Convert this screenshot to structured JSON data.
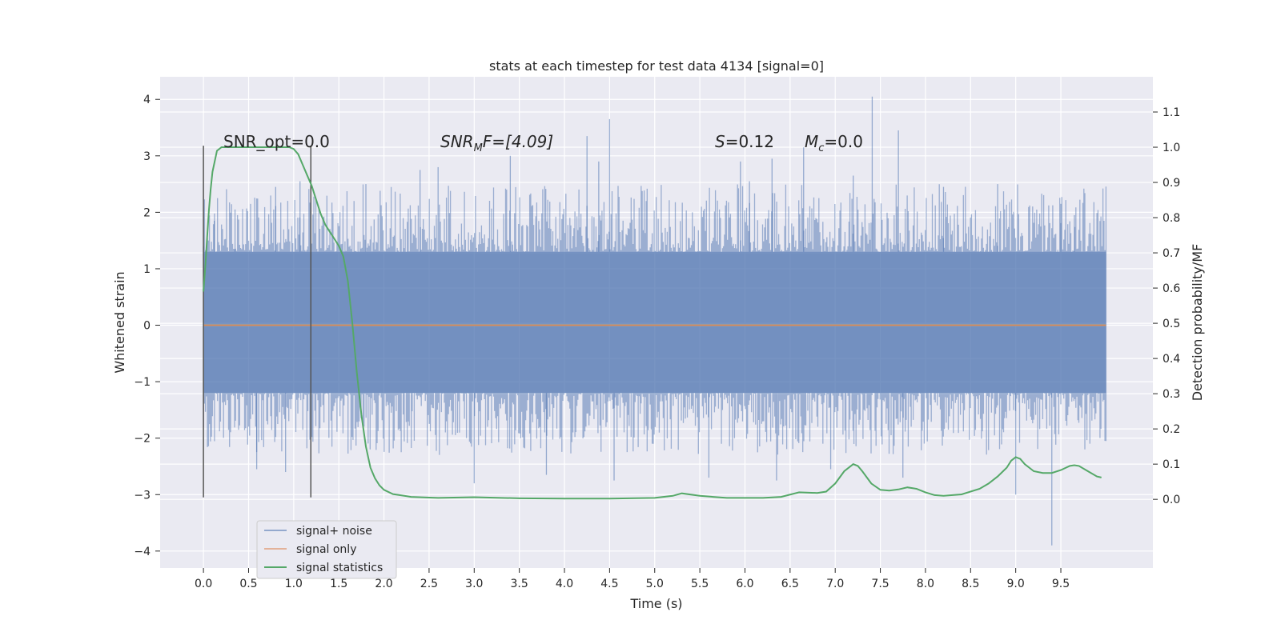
{
  "chart_data": {
    "type": "line",
    "title": "stats at each timestep for test data 4134 [signal=0]",
    "xlabel": "Time (s)",
    "ylabel_left": "Whitened strain",
    "ylabel_right": "Detection probability/MF",
    "xlim": [
      -0.48,
      10.52
    ],
    "ylim_left": [
      -4.3,
      4.4
    ],
    "ylim_right": [
      -0.195,
      1.2
    ],
    "x_ticks": [
      "0.0",
      "0.5",
      "1.0",
      "1.5",
      "2.0",
      "2.5",
      "3.0",
      "3.5",
      "4.0",
      "4.5",
      "5.0",
      "5.5",
      "6.0",
      "6.5",
      "7.0",
      "7.5",
      "8.0",
      "8.5",
      "9.0",
      "9.5"
    ],
    "y_ticks_left": [
      "4",
      "3",
      "2",
      "1",
      "0",
      "−1",
      "−2",
      "−3",
      "−4"
    ],
    "y_ticks_right": [
      "1.1",
      "1.0",
      "0.9",
      "0.8",
      "0.7",
      "0.6",
      "0.5",
      "0.4",
      "0.3",
      "0.2",
      "0.1",
      "0.0"
    ],
    "grid": true,
    "legend_position": "lower-left",
    "annotations": {
      "snr_opt": "SNR_opt=0.0",
      "snr_mf_label": "SNR",
      "snr_mf_sub": "M",
      "snr_mf_after": "F=[4.09]",
      "s_label": "S",
      "s_value": "=0.12",
      "mc_label": "M",
      "mc_sub": "c",
      "mc_value": "=0.0"
    },
    "vertical_lines_x": [
      0.0,
      1.19
    ],
    "vertical_lines_range": [
      -3.05,
      3.18
    ],
    "series": [
      {
        "name": "signal+ noise",
        "color": "#4c72b0",
        "axis": "left",
        "x_range": [
          0.0,
          10.0
        ],
        "envelope_typical": [
          -1.6,
          1.9
        ],
        "min": -3.9,
        "max": 4.05,
        "spikes": [
          {
            "x": 0.12,
            "y": 1.85
          },
          {
            "x": 0.35,
            "y": 2.05
          },
          {
            "x": 0.59,
            "y": -2.55
          },
          {
            "x": 0.8,
            "y": 2.45
          },
          {
            "x": 0.91,
            "y": -2.6
          },
          {
            "x": 1.07,
            "y": 2.55
          },
          {
            "x": 1.8,
            "y": 2.5
          },
          {
            "x": 2.4,
            "y": 2.75
          },
          {
            "x": 2.6,
            "y": 2.8
          },
          {
            "x": 3.0,
            "y": -2.8
          },
          {
            "x": 3.4,
            "y": 3.0
          },
          {
            "x": 3.8,
            "y": -2.65
          },
          {
            "x": 4.25,
            "y": 3.35
          },
          {
            "x": 4.38,
            "y": 2.9
          },
          {
            "x": 4.5,
            "y": 3.65
          },
          {
            "x": 4.55,
            "y": -2.75
          },
          {
            "x": 5.6,
            "y": -2.7
          },
          {
            "x": 5.95,
            "y": 2.9
          },
          {
            "x": 6.05,
            "y": 2.55
          },
          {
            "x": 6.3,
            "y": 2.95
          },
          {
            "x": 6.35,
            "y": -2.75
          },
          {
            "x": 6.65,
            "y": 3.15
          },
          {
            "x": 6.95,
            "y": -2.55
          },
          {
            "x": 7.2,
            "y": 2.65
          },
          {
            "x": 7.41,
            "y": 4.05
          },
          {
            "x": 7.7,
            "y": 3.45
          },
          {
            "x": 7.75,
            "y": -2.7
          },
          {
            "x": 8.2,
            "y": 2.45
          },
          {
            "x": 8.8,
            "y": 2.5
          },
          {
            "x": 9.0,
            "y": -3.0
          },
          {
            "x": 9.4,
            "y": -3.9
          },
          {
            "x": 9.5,
            "y": 2.15
          },
          {
            "x": 9.65,
            "y": 1.95
          }
        ]
      },
      {
        "name": "signal only",
        "color": "#dd8452",
        "axis": "left",
        "x": [
          0.0,
          10.0
        ],
        "y": [
          0.0,
          0.0
        ]
      },
      {
        "name": "signal statistics",
        "color": "#55a868",
        "axis": "right",
        "x": [
          0.0,
          0.02,
          0.04,
          0.06,
          0.08,
          0.1,
          0.15,
          0.2,
          0.3,
          0.4,
          0.5,
          0.6,
          0.7,
          0.8,
          0.9,
          0.95,
          1.0,
          1.05,
          1.1,
          1.15,
          1.2,
          1.25,
          1.3,
          1.35,
          1.4,
          1.45,
          1.5,
          1.55,
          1.6,
          1.65,
          1.7,
          1.75,
          1.8,
          1.85,
          1.9,
          1.95,
          2.0,
          2.1,
          2.3,
          2.6,
          3.0,
          3.5,
          4.0,
          4.5,
          5.0,
          5.2,
          5.3,
          5.5,
          5.8,
          6.2,
          6.4,
          6.6,
          6.8,
          6.9,
          7.0,
          7.1,
          7.2,
          7.25,
          7.3,
          7.4,
          7.5,
          7.6,
          7.7,
          7.8,
          7.9,
          8.0,
          8.1,
          8.2,
          8.4,
          8.6,
          8.7,
          8.8,
          8.9,
          8.95,
          9.0,
          9.05,
          9.1,
          9.2,
          9.3,
          9.4,
          9.5,
          9.6,
          9.65,
          9.7,
          9.8,
          9.9,
          9.95
        ],
        "y": [
          0.59,
          0.66,
          0.74,
          0.82,
          0.88,
          0.93,
          0.99,
          1.0,
          1.0,
          1.0,
          1.0,
          1.0,
          1.0,
          1.0,
          1.0,
          1.0,
          0.995,
          0.98,
          0.95,
          0.92,
          0.89,
          0.85,
          0.81,
          0.78,
          0.76,
          0.74,
          0.72,
          0.69,
          0.62,
          0.5,
          0.36,
          0.24,
          0.15,
          0.09,
          0.06,
          0.04,
          0.027,
          0.015,
          0.007,
          0.004,
          0.006,
          0.003,
          0.002,
          0.002,
          0.004,
          0.01,
          0.017,
          0.01,
          0.004,
          0.004,
          0.007,
          0.02,
          0.018,
          0.022,
          0.045,
          0.08,
          0.1,
          0.095,
          0.08,
          0.045,
          0.027,
          0.025,
          0.028,
          0.034,
          0.03,
          0.02,
          0.012,
          0.01,
          0.014,
          0.03,
          0.045,
          0.065,
          0.09,
          0.11,
          0.12,
          0.115,
          0.1,
          0.08,
          0.075,
          0.075,
          0.083,
          0.095,
          0.097,
          0.095,
          0.08,
          0.065,
          0.062
        ]
      }
    ]
  }
}
